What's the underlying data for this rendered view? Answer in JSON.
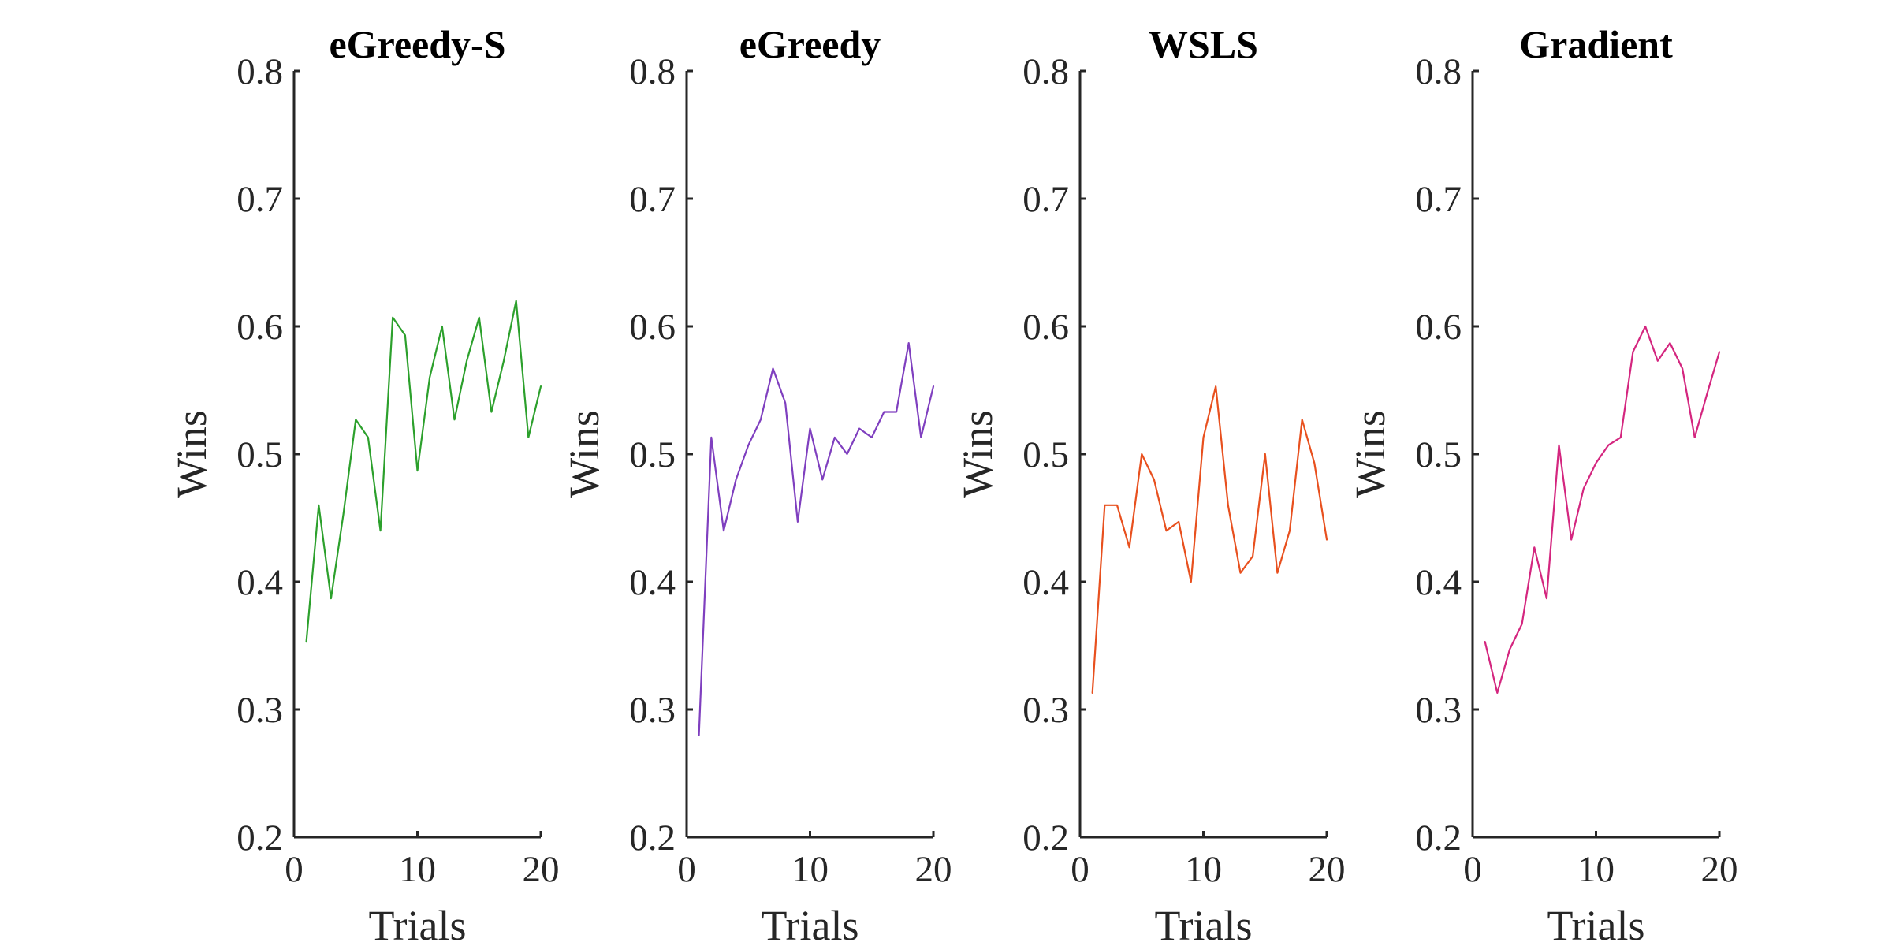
{
  "chart_data": [
    {
      "type": "line",
      "title": "eGreedy-S",
      "xlabel": "Trials",
      "ylabel": "Wins",
      "xlim": [
        0,
        20
      ],
      "ylim": [
        0.2,
        0.8
      ],
      "xticks": [
        "0",
        "10",
        "20"
      ],
      "yticks": [
        "0.2",
        "0.3",
        "0.4",
        "0.5",
        "0.6",
        "0.7",
        "0.8"
      ],
      "color": "#2ca02c",
      "series": [
        {
          "x": [
            1,
            2,
            3,
            4,
            5,
            6,
            7,
            8,
            9,
            10,
            11,
            12,
            13,
            14,
            15,
            16,
            17,
            18,
            19,
            20
          ],
          "values": [
            0.353,
            0.46,
            0.387,
            0.453,
            0.527,
            0.513,
            0.44,
            0.607,
            0.593,
            0.487,
            0.56,
            0.6,
            0.527,
            0.573,
            0.607,
            0.533,
            0.573,
            0.62,
            0.513,
            0.553
          ]
        }
      ]
    },
    {
      "type": "line",
      "title": "eGreedy",
      "xlabel": "Trials",
      "ylabel": "Wins",
      "xlim": [
        0,
        20
      ],
      "ylim": [
        0.2,
        0.8
      ],
      "xticks": [
        "0",
        "10",
        "20"
      ],
      "yticks": [
        "0.2",
        "0.3",
        "0.4",
        "0.5",
        "0.6",
        "0.7",
        "0.8"
      ],
      "color": "#7f3fbf",
      "series": [
        {
          "x": [
            1,
            2,
            3,
            4,
            5,
            6,
            7,
            8,
            9,
            10,
            11,
            12,
            13,
            14,
            15,
            16,
            17,
            18,
            19,
            20
          ],
          "values": [
            0.28,
            0.513,
            0.44,
            0.48,
            0.507,
            0.527,
            0.567,
            0.54,
            0.447,
            0.52,
            0.48,
            0.513,
            0.5,
            0.52,
            0.513,
            0.533,
            0.533,
            0.587,
            0.513,
            0.553
          ]
        }
      ]
    },
    {
      "type": "line",
      "title": "WSLS",
      "xlabel": "Trials",
      "ylabel": "Wins",
      "xlim": [
        0,
        20
      ],
      "ylim": [
        0.2,
        0.8
      ],
      "xticks": [
        "0",
        "10",
        "20"
      ],
      "yticks": [
        "0.2",
        "0.3",
        "0.4",
        "0.5",
        "0.6",
        "0.7",
        "0.8"
      ],
      "color": "#e8501e",
      "series": [
        {
          "x": [
            1,
            2,
            3,
            4,
            5,
            6,
            7,
            8,
            9,
            10,
            11,
            12,
            13,
            14,
            15,
            16,
            17,
            18,
            19,
            20
          ],
          "values": [
            0.313,
            0.46,
            0.46,
            0.427,
            0.5,
            0.48,
            0.44,
            0.447,
            0.4,
            0.513,
            0.553,
            0.46,
            0.407,
            0.42,
            0.5,
            0.407,
            0.44,
            0.527,
            0.493,
            0.433
          ]
        }
      ]
    },
    {
      "type": "line",
      "title": "Gradient",
      "xlabel": "Trials",
      "ylabel": "Wins",
      "xlim": [
        0,
        20
      ],
      "ylim": [
        0.2,
        0.8
      ],
      "xticks": [
        "0",
        "10",
        "20"
      ],
      "yticks": [
        "0.2",
        "0.3",
        "0.4",
        "0.5",
        "0.6",
        "0.7",
        "0.8"
      ],
      "color": "#d4267f",
      "series": [
        {
          "x": [
            1,
            2,
            3,
            4,
            5,
            6,
            7,
            8,
            9,
            10,
            11,
            12,
            13,
            14,
            15,
            16,
            17,
            18,
            19,
            20
          ],
          "values": [
            0.353,
            0.313,
            0.347,
            0.367,
            0.427,
            0.387,
            0.507,
            0.433,
            0.473,
            0.493,
            0.507,
            0.513,
            0.58,
            0.6,
            0.573,
            0.587,
            0.567,
            0.513,
            0.547,
            0.58
          ]
        }
      ]
    }
  ]
}
